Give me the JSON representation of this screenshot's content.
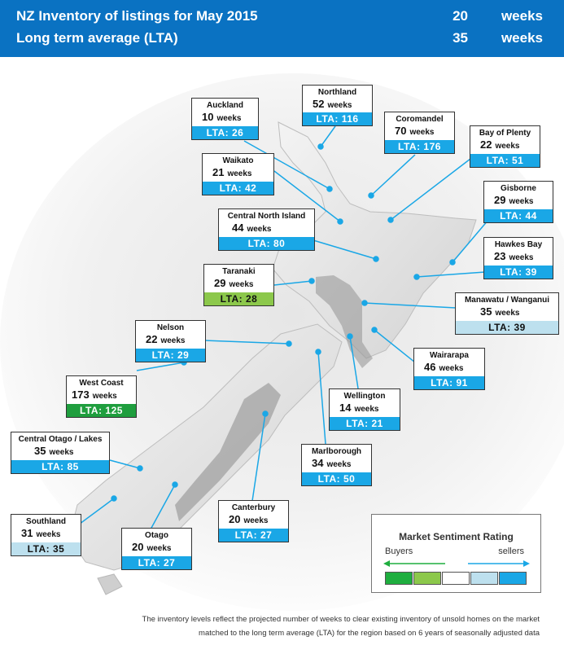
{
  "header": {
    "title": "NZ Inventory of listings for May 2015",
    "title_value": "20",
    "title_unit": "weeks",
    "lta_label": "Long term average (LTA)",
    "lta_value": "35",
    "lta_unit": "weeks"
  },
  "colors": {
    "header_bg": "#0a72c2",
    "lta_blue": "#1aa7e6",
    "lta_light_green": "#8cc84b",
    "lta_dark_green": "#1f9e3e",
    "lta_pale_blue": "#bde0ee"
  },
  "regions": [
    {
      "name": "Northland",
      "weeks": "52",
      "unit": "weeks",
      "lta": "LTA: 116"
    },
    {
      "name": "Auckland",
      "weeks": "10",
      "unit": "weeks",
      "lta": "LTA: 26"
    },
    {
      "name": "Coromandel",
      "weeks": "70",
      "unit": "weeks",
      "lta": "LTA: 176"
    },
    {
      "name": "Bay of Plenty",
      "weeks": "22",
      "unit": "weeks",
      "lta": "LTA: 51"
    },
    {
      "name": "Waikato",
      "weeks": "21",
      "unit": "weeks",
      "lta": "LTA: 42"
    },
    {
      "name": "Gisborne",
      "weeks": "29",
      "unit": "weeks",
      "lta": "LTA: 44"
    },
    {
      "name": "Central North Island",
      "weeks": "44",
      "unit": "weeks",
      "lta": "LTA: 80"
    },
    {
      "name": "Hawkes Bay",
      "weeks": "23",
      "unit": "weeks",
      "lta": "LTA: 39"
    },
    {
      "name": "Taranaki",
      "weeks": "29",
      "unit": "weeks",
      "lta": "LTA: 28"
    },
    {
      "name": "Manawatu / Wanganui",
      "weeks": "35",
      "unit": "weeks",
      "lta": "LTA: 39"
    },
    {
      "name": "Nelson",
      "weeks": "22",
      "unit": "weeks",
      "lta": "LTA: 29"
    },
    {
      "name": "Wairarapa",
      "weeks": "46",
      "unit": "weeks",
      "lta": "LTA: 91"
    },
    {
      "name": "West Coast",
      "weeks": "173",
      "unit": "weeks",
      "lta": "LTA: 125"
    },
    {
      "name": "Wellington",
      "weeks": "14",
      "unit": "weeks",
      "lta": "LTA: 21"
    },
    {
      "name": "Central Otago / Lakes",
      "weeks": "35",
      "unit": "weeks",
      "lta": "LTA: 85"
    },
    {
      "name": "Marlborough",
      "weeks": "34",
      "unit": "weeks",
      "lta": "LTA: 50"
    },
    {
      "name": "Canterbury",
      "weeks": "20",
      "unit": "weeks",
      "lta": "LTA: 27"
    },
    {
      "name": "Southland",
      "weeks": "31",
      "unit": "weeks",
      "lta": "LTA: 35"
    },
    {
      "name": "Otago",
      "weeks": "20",
      "unit": "weeks",
      "lta": "LTA: 27"
    }
  ],
  "legend": {
    "title": "Market Sentiment Rating",
    "left_label": "Buyers",
    "right_label": "sellers",
    "scale_colors": [
      "#1fae3f",
      "#8cc84b",
      "#ffffff",
      "#bde0ee",
      "#1aa7e6"
    ]
  },
  "footnote": {
    "line1": "The inventory levels reflect the projected number of weeks to clear existing inventory of unsold homes on the market",
    "line2": "matched to the long term average (LTA) for the region based on 6 years of seasonally adjusted data"
  }
}
